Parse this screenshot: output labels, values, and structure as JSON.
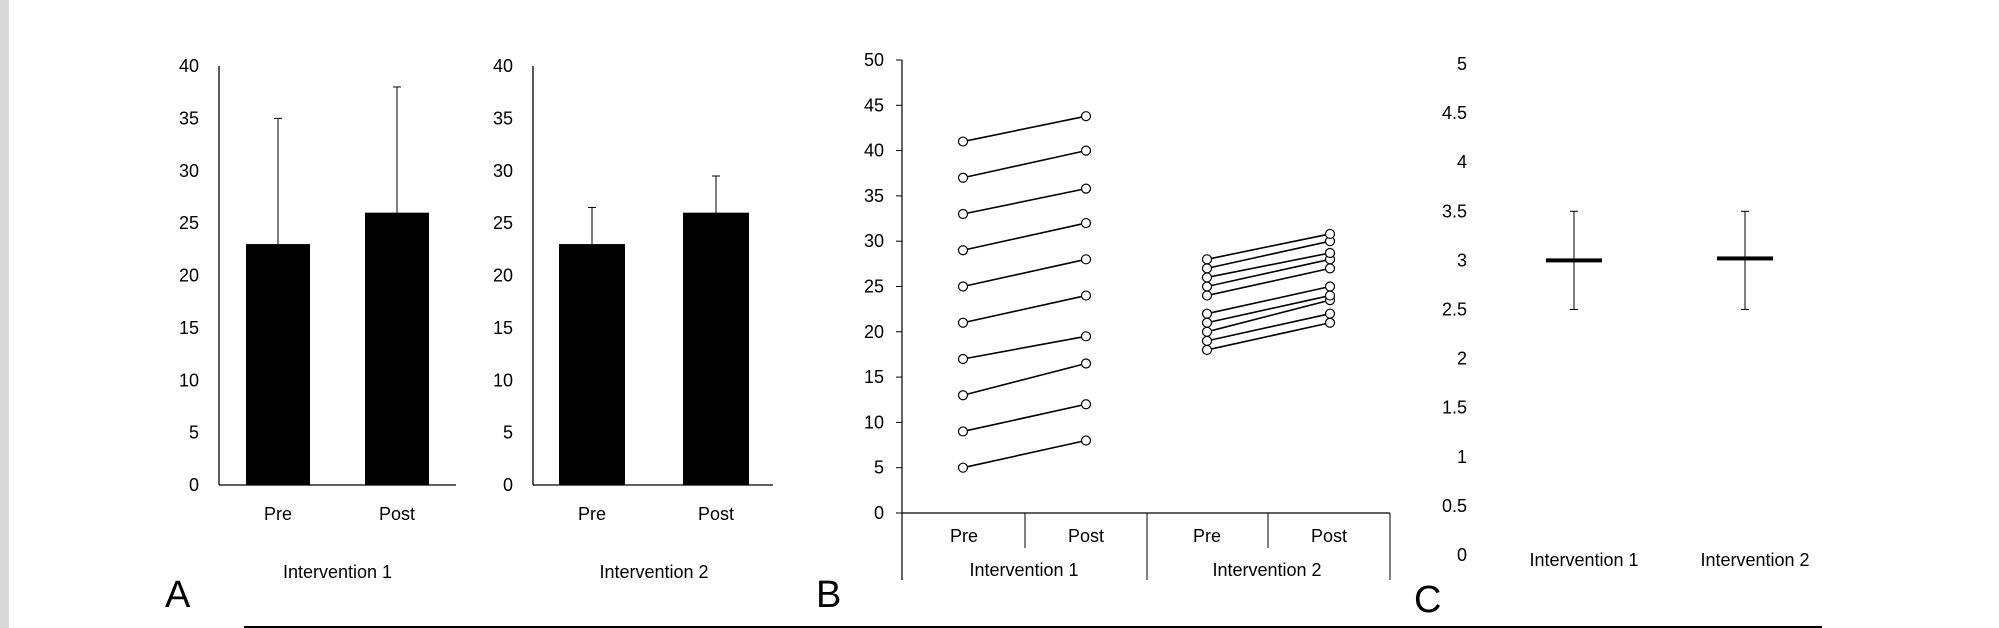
{
  "chart_data": [
    {
      "panel": "A",
      "type": "bar",
      "categories": [
        "Pre",
        "Post"
      ],
      "values": [
        23,
        26
      ],
      "error_upper": [
        35,
        38
      ],
      "xlabel": "Intervention 1",
      "ylim": [
        0,
        40
      ],
      "yticks": [
        0,
        5,
        10,
        15,
        20,
        25,
        30,
        35,
        40
      ],
      "bar_color": "#000000"
    },
    {
      "panel": "",
      "type": "bar",
      "categories": [
        "Pre",
        "Post"
      ],
      "values": [
        23,
        26
      ],
      "error_upper": [
        26.5,
        29.5
      ],
      "xlabel": "Intervention 2",
      "ylim": [
        0,
        40
      ],
      "yticks": [
        0,
        5,
        10,
        15,
        20,
        25,
        30,
        35,
        40
      ],
      "bar_color": "#000000"
    },
    {
      "panel": "B",
      "type": "line",
      "groups": [
        {
          "name": "Intervention 1",
          "categories": [
            "Pre",
            "Post"
          ],
          "pairs": [
            [
              5,
              8
            ],
            [
              9,
              12
            ],
            [
              13,
              16.5
            ],
            [
              17,
              19.5
            ],
            [
              21,
              24
            ],
            [
              25,
              28
            ],
            [
              29,
              32
            ],
            [
              33,
              35.8
            ],
            [
              37,
              40
            ],
            [
              41,
              43.8
            ]
          ]
        },
        {
          "name": "Intervention 2",
          "categories": [
            "Pre",
            "Post"
          ],
          "pairs": [
            [
              18,
              21
            ],
            [
              19,
              22
            ],
            [
              20,
              23.5
            ],
            [
              21,
              24
            ],
            [
              22,
              25
            ],
            [
              24,
              27
            ],
            [
              25,
              28
            ],
            [
              26,
              28.7
            ],
            [
              27,
              30
            ],
            [
              28,
              30.8
            ]
          ]
        }
      ],
      "ylim": [
        0,
        50
      ],
      "yticks": [
        0,
        5,
        10,
        15,
        20,
        25,
        30,
        35,
        40,
        45,
        50
      ],
      "marker": "open-circle"
    },
    {
      "panel": "C",
      "type": "scatter",
      "categories": [
        "Intervention 1",
        "Intervention 2"
      ],
      "values": [
        3.0,
        3.02
      ],
      "error_lower": [
        2.5,
        2.5
      ],
      "error_upper": [
        3.5,
        3.5
      ],
      "ylim": [
        0,
        5
      ],
      "yticks": [
        "0",
        "0.5",
        "1",
        "1.5",
        "2",
        "2.5",
        "3",
        "3.5",
        "4",
        "4.5",
        "5"
      ],
      "marker": "horizontal-bar"
    }
  ]
}
